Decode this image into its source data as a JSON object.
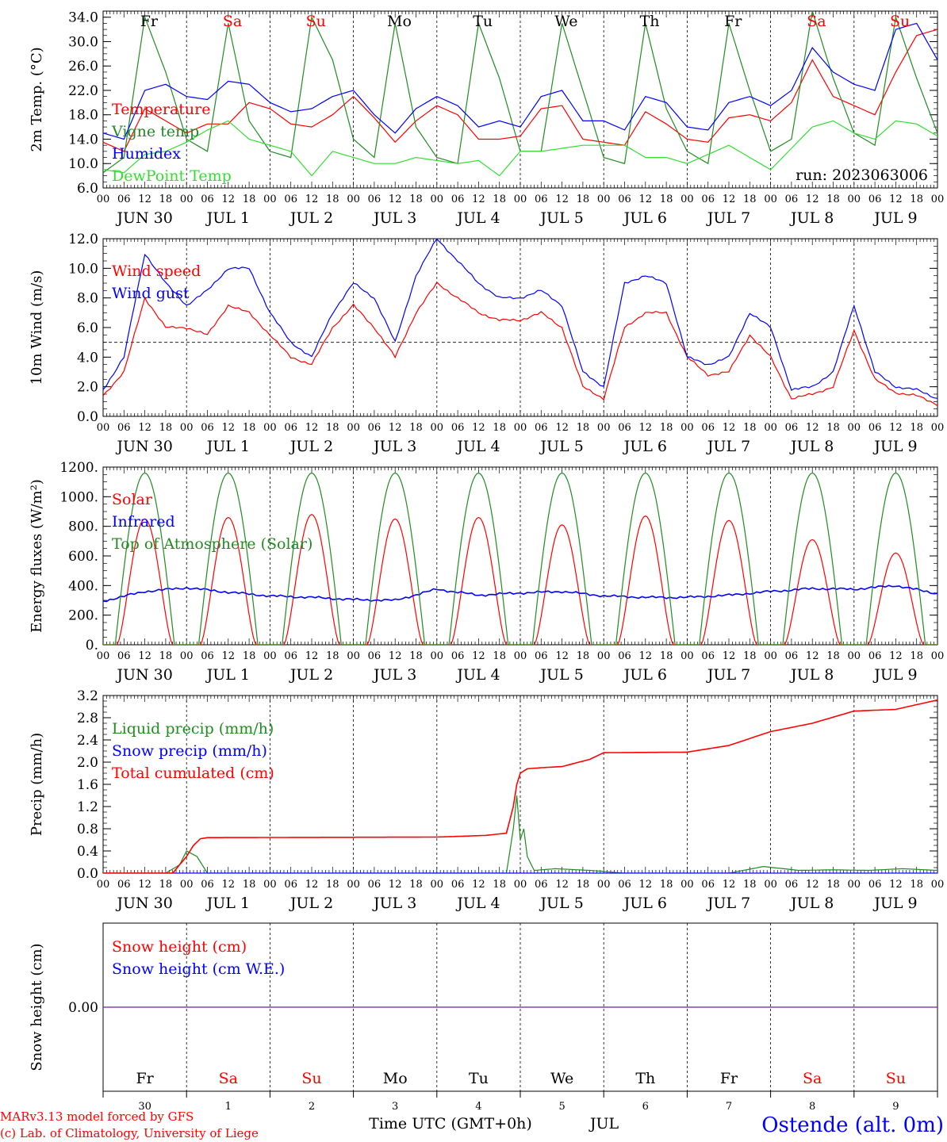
{
  "colors": {
    "red": "#ff0000",
    "green": "#228b22",
    "blue": "#0000ff",
    "lime": "#33dd33",
    "purple": "#7f3f9f",
    "axis": "#000000"
  },
  "days": {
    "short": [
      "Fr",
      "Sa",
      "Su",
      "Mo",
      "Tu",
      "We",
      "Th",
      "Fr",
      "Sa",
      "Su"
    ],
    "weekend": [
      false,
      true,
      true,
      false,
      false,
      false,
      false,
      false,
      true,
      true
    ],
    "date_labels": [
      "JUN 30",
      "JUL  1",
      "JUL  2",
      "JUL  3",
      "JUL  4",
      "JUL  5",
      "JUL  6",
      "JUL  7",
      "JUL  8",
      "JUL  9"
    ],
    "day_numbers": [
      "30",
      "1",
      "2",
      "3",
      "4",
      "5",
      "6",
      "7",
      "8",
      "9"
    ],
    "hour_ticks": [
      "00",
      "06",
      "12",
      "18"
    ],
    "final_tick": "00"
  },
  "footer": {
    "credit_line1": "MARv3.13 model forced by GFS",
    "credit_line2": "(c) Lab. of Climatology, University of Liege",
    "xlabel": "Time UTC (GMT+0h)",
    "month": "JUL",
    "station": "Ostende (alt. 0m)"
  },
  "chart_data": [
    {
      "id": "temp",
      "type": "line",
      "ylabel": "2m Temp. (°C)",
      "ylim": [
        6,
        35
      ],
      "yticks": [
        "6.0",
        "10.0",
        "14.0",
        "18.0",
        "22.0",
        "26.0",
        "30.0",
        "34.0"
      ],
      "yticks_values": [
        6,
        10,
        14,
        18,
        22,
        26,
        30,
        34
      ],
      "annotation": "run: 2023063006",
      "x_unit": "hours since JUN 30 00 UTC",
      "series": [
        {
          "name": "Temperature",
          "color": "#ff0000",
          "x": [
            0,
            6,
            12,
            18,
            24,
            30,
            36,
            42,
            48,
            54,
            60,
            66,
            72,
            78,
            84,
            90,
            96,
            102,
            108,
            114,
            120,
            126,
            132,
            138,
            144,
            150,
            156,
            162,
            168,
            174,
            180,
            186,
            192,
            198,
            204,
            210,
            216,
            222,
            228,
            234,
            240
          ],
          "y": [
            13.5,
            12,
            19,
            17,
            15,
            16.5,
            16.5,
            20,
            19,
            16.5,
            16,
            18,
            21,
            17.5,
            13.5,
            17,
            19.5,
            18,
            14,
            14,
            14.5,
            19,
            19.5,
            14,
            13.5,
            13,
            18.5,
            16.5,
            14,
            13.5,
            17.5,
            18,
            17,
            20,
            27,
            21,
            19.5,
            18,
            25,
            31,
            32
          ]
        },
        {
          "name": "Vigne temp",
          "color": "#228b22",
          "x": [
            0,
            6,
            12,
            18,
            24,
            30,
            36,
            42,
            48,
            54,
            60,
            66,
            72,
            78,
            84,
            90,
            96,
            102,
            108,
            114,
            120,
            126,
            132,
            138,
            144,
            150,
            156,
            162,
            168,
            174,
            180,
            186,
            192,
            198,
            204,
            210,
            216,
            222,
            228,
            234,
            240
          ],
          "y": [
            8.5,
            11,
            34,
            25,
            14,
            12,
            33,
            17,
            12,
            11,
            34,
            27,
            14,
            11,
            33,
            16,
            11,
            10,
            33,
            24,
            12,
            12,
            33,
            22,
            11,
            10,
            33,
            19,
            12,
            10,
            33,
            22,
            12,
            14,
            35,
            24,
            15,
            13,
            34,
            24,
            15
          ]
        },
        {
          "name": "Humidex",
          "color": "#0000ff",
          "x": [
            0,
            6,
            12,
            18,
            24,
            30,
            36,
            42,
            48,
            54,
            60,
            66,
            72,
            78,
            84,
            90,
            96,
            102,
            108,
            114,
            120,
            126,
            132,
            138,
            144,
            150,
            156,
            162,
            168,
            174,
            180,
            186,
            192,
            198,
            204,
            210,
            216,
            222,
            228,
            234,
            240
          ],
          "y": [
            15,
            14,
            22,
            23,
            21,
            20.5,
            23.5,
            23,
            20,
            18.5,
            19,
            21,
            22,
            18,
            15,
            19,
            21,
            19.5,
            16,
            17,
            16,
            21,
            22,
            17,
            17,
            15.5,
            21,
            20,
            16,
            15.5,
            20,
            21,
            19.5,
            22,
            29,
            25,
            23,
            22,
            32,
            33,
            27
          ]
        },
        {
          "name": "DewPoint Temp",
          "color": "#33dd33",
          "x": [
            0,
            6,
            12,
            18,
            24,
            30,
            36,
            42,
            48,
            54,
            60,
            66,
            72,
            78,
            84,
            90,
            96,
            102,
            108,
            114,
            120,
            126,
            132,
            138,
            144,
            150,
            156,
            162,
            168,
            174,
            180,
            186,
            192,
            198,
            204,
            210,
            216,
            222,
            228,
            234,
            240
          ],
          "y": [
            9,
            8.5,
            11.5,
            12,
            13.5,
            15.5,
            17,
            14,
            13,
            12,
            8,
            12,
            11,
            10,
            10,
            11,
            10.5,
            10,
            10.5,
            8,
            12,
            12,
            12.5,
            13,
            13,
            13,
            11,
            11,
            10,
            11.5,
            13,
            11,
            9,
            12.5,
            16,
            17,
            15,
            14,
            17,
            16.5,
            14.5
          ]
        }
      ]
    },
    {
      "id": "wind",
      "type": "line",
      "ylabel": "10m Wind (m/s)",
      "ylim": [
        0,
        12
      ],
      "yticks": [
        "0.0",
        "2.0",
        "4.0",
        "6.0",
        "8.0",
        "10.0",
        "12.0"
      ],
      "yticks_values": [
        0,
        2,
        4,
        6,
        8,
        10,
        12
      ],
      "reference_line": 5,
      "x_unit": "hours since JUN 30 00 UTC",
      "series": [
        {
          "name": "Wind speed",
          "color": "#ff0000",
          "x": [
            0,
            6,
            12,
            18,
            24,
            30,
            36,
            42,
            48,
            54,
            60,
            66,
            72,
            78,
            84,
            90,
            96,
            102,
            108,
            114,
            120,
            126,
            132,
            138,
            144,
            150,
            156,
            162,
            168,
            174,
            180,
            186,
            192,
            198,
            204,
            210,
            216,
            222,
            228,
            234,
            240
          ],
          "y": [
            1.4,
            3,
            8,
            6,
            6,
            5.5,
            7.5,
            7,
            5.5,
            4,
            3.5,
            6,
            7.5,
            6,
            4,
            7,
            9,
            8,
            7,
            6.5,
            6.5,
            7,
            6,
            2,
            1.2,
            6,
            7,
            7,
            4,
            2.8,
            3,
            5.5,
            4,
            1.2,
            1.5,
            2,
            5.8,
            2.5,
            1.6,
            1.4,
            0.8
          ]
        },
        {
          "name": "Wind gust",
          "color": "#0000ff",
          "x": [
            0,
            6,
            12,
            18,
            24,
            30,
            36,
            42,
            48,
            54,
            60,
            66,
            72,
            78,
            84,
            90,
            96,
            102,
            108,
            114,
            120,
            126,
            132,
            138,
            144,
            150,
            156,
            162,
            168,
            174,
            180,
            186,
            192,
            198,
            204,
            210,
            216,
            222,
            228,
            234,
            240
          ],
          "y": [
            1.8,
            4,
            11,
            9,
            7.5,
            8.5,
            10,
            10,
            7,
            5,
            4,
            7,
            9,
            8,
            5,
            9.5,
            12,
            10.5,
            9,
            8,
            8,
            8.5,
            7.5,
            3,
            2,
            9,
            9.5,
            9,
            4,
            3.5,
            4,
            7,
            6,
            1.8,
            2,
            3,
            7.5,
            3,
            2,
            1.8,
            1.2
          ]
        }
      ]
    },
    {
      "id": "energy",
      "type": "line",
      "ylabel": "Energy fluxes (W/m²)",
      "ylim": [
        0,
        1200
      ],
      "yticks": [
        "0.",
        "200.",
        "400.",
        "600.",
        "800.",
        "1000.",
        "1200."
      ],
      "yticks_values": [
        0,
        200,
        400,
        600,
        800,
        1000,
        1200
      ],
      "x_unit": "hours since JUN 30 00 UTC",
      "daily_peaks": {
        "solar": [
          850,
          860,
          880,
          850,
          860,
          810,
          870,
          840,
          710,
          620
        ],
        "toa": [
          1160,
          1160,
          1160,
          1160,
          1160,
          1160,
          1160,
          1160,
          1160,
          1160
        ]
      },
      "series": [
        {
          "name": "Solar",
          "color": "#ff0000"
        },
        {
          "name": "Infrared",
          "color": "#0000ff",
          "x": [
            0,
            12,
            24,
            36,
            48,
            60,
            72,
            84,
            96,
            108,
            120,
            132,
            144,
            156,
            168,
            180,
            192,
            204,
            216,
            228,
            240
          ],
          "y": [
            295,
            360,
            385,
            355,
            330,
            320,
            305,
            300,
            375,
            335,
            350,
            360,
            330,
            320,
            320,
            335,
            360,
            380,
            375,
            400,
            345
          ]
        },
        {
          "name": "Top of Atmosphere (Solar)",
          "color": "#228b22"
        }
      ]
    },
    {
      "id": "precip",
      "type": "line",
      "ylabel": "Precip (mm/h)",
      "ylim": [
        0,
        3.2
      ],
      "yticks": [
        "0.0",
        "0.4",
        "0.8",
        "1.2",
        "1.6",
        "2.0",
        "2.4",
        "2.8",
        "3.2"
      ],
      "yticks_values": [
        0,
        0.4,
        0.8,
        1.2,
        1.6,
        2.0,
        2.4,
        2.8,
        3.2
      ],
      "x_unit": "hours since JUN 30 00 UTC",
      "series": [
        {
          "name": "Liquid precip (mm/h)",
          "color": "#228b22",
          "x": [
            0,
            18,
            22,
            24,
            27,
            30,
            96,
            116,
            118,
            119,
            120,
            121,
            122,
            124,
            130,
            140,
            150,
            160,
            180,
            190,
            200,
            210,
            220,
            230,
            240
          ],
          "y": [
            0,
            0,
            0.15,
            0.4,
            0.3,
            0,
            0,
            0,
            0.8,
            1.4,
            0.6,
            0.8,
            0.3,
            0.05,
            0.08,
            0.05,
            0,
            0,
            0,
            0.12,
            0.05,
            0.06,
            0.05,
            0.08,
            0.05
          ]
        },
        {
          "name": "Snow precip (mm/h)",
          "color": "#0000ff",
          "x": [
            0,
            240
          ],
          "y": [
            0,
            0
          ]
        },
        {
          "name": "Total cumulated (cm)",
          "color": "#ff0000",
          "x": [
            0,
            20,
            24,
            26,
            28,
            30,
            96,
            110,
            116,
            118,
            119,
            120,
            122,
            126,
            132,
            140,
            144,
            168,
            180,
            192,
            204,
            216,
            228,
            240
          ],
          "y": [
            0,
            0,
            0.3,
            0.5,
            0.62,
            0.64,
            0.65,
            0.68,
            0.72,
            1.2,
            1.6,
            1.8,
            1.88,
            1.9,
            1.92,
            2.05,
            2.17,
            2.18,
            2.3,
            2.55,
            2.7,
            2.92,
            2.95,
            3.12
          ]
        }
      ]
    },
    {
      "id": "snow",
      "type": "line",
      "ylabel": "Snow height (cm)",
      "ylim": [
        -1,
        1
      ],
      "yticks": [
        "0.00"
      ],
      "yticks_values": [
        0
      ],
      "x_unit": "hours since JUN 30 00 UTC",
      "series": [
        {
          "name": "Snow height (cm)",
          "color": "#ff0000",
          "x": [
            0,
            240
          ],
          "y": [
            0,
            0
          ]
        },
        {
          "name": "Snow height (cm W.E.)",
          "color": "#0000ff",
          "x": [
            0,
            240
          ],
          "y": [
            0,
            0
          ]
        }
      ]
    }
  ]
}
